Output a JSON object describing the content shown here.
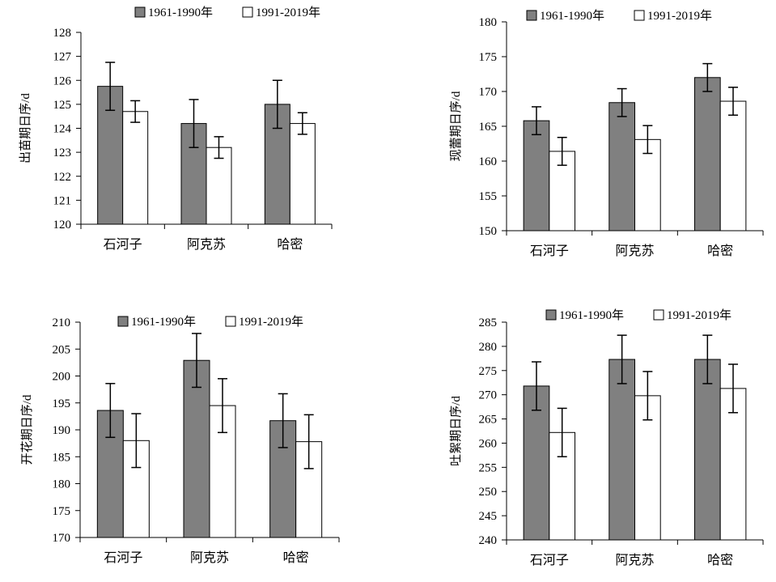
{
  "colors": {
    "series_1": "#808080",
    "series_2": "#ffffff",
    "stroke": "#000000"
  },
  "chart_data": [
    {
      "type": "bar",
      "categories": [
        "石河子",
        "阿克苏",
        "哈密"
      ],
      "ylabel": "出苗期日序/d",
      "ylim": [
        120,
        128
      ],
      "yticks": [
        120,
        121,
        122,
        123,
        124,
        125,
        126,
        127,
        128
      ],
      "legend_position": "top",
      "series": [
        {
          "name": "1961-1990年",
          "values": [
            125.75,
            124.2,
            125.0
          ],
          "errors": [
            1.0,
            1.0,
            1.0
          ]
        },
        {
          "name": "1991-2019年",
          "values": [
            124.7,
            123.2,
            124.2
          ],
          "errors": [
            0.45,
            0.45,
            0.45
          ]
        }
      ]
    },
    {
      "type": "bar",
      "categories": [
        "石河子",
        "阿克苏",
        "哈密"
      ],
      "ylabel": "现蕾期日序/d",
      "ylim": [
        150,
        180
      ],
      "yticks": [
        150,
        155,
        160,
        165,
        170,
        175,
        180
      ],
      "legend_position": "top",
      "series": [
        {
          "name": "1961-1990年",
          "values": [
            165.8,
            168.4,
            172.0
          ],
          "errors": [
            2.0,
            2.0,
            2.0
          ]
        },
        {
          "name": "1991-2019年",
          "values": [
            161.4,
            163.1,
            168.6
          ],
          "errors": [
            2.0,
            2.0,
            2.0
          ]
        }
      ]
    },
    {
      "type": "bar",
      "categories": [
        "石河子",
        "阿克苏",
        "哈密"
      ],
      "ylabel": "开花期日序/d",
      "ylim": [
        170,
        210
      ],
      "yticks": [
        170,
        175,
        180,
        185,
        190,
        195,
        200,
        205,
        210
      ],
      "legend_position": "top",
      "series": [
        {
          "name": "1961-1990年",
          "values": [
            193.6,
            202.9,
            191.7
          ],
          "errors": [
            5.0,
            5.0,
            5.0
          ]
        },
        {
          "name": "1991-2019年",
          "values": [
            188.0,
            194.5,
            187.8
          ],
          "errors": [
            5.0,
            5.0,
            5.0
          ]
        }
      ]
    },
    {
      "type": "bar",
      "categories": [
        "石河子",
        "阿克苏",
        "哈密"
      ],
      "ylabel": "吐絮期日序/d",
      "ylim": [
        240,
        285
      ],
      "yticks": [
        240,
        245,
        250,
        255,
        260,
        265,
        270,
        275,
        280,
        285
      ],
      "legend_position": "top",
      "series": [
        {
          "name": "1961-1990年",
          "values": [
            271.8,
            277.3,
            277.3
          ],
          "errors": [
            5.0,
            5.0,
            5.0
          ]
        },
        {
          "name": "1991-2019年",
          "values": [
            262.2,
            269.8,
            271.3
          ],
          "errors": [
            5.0,
            5.0,
            5.0
          ]
        }
      ]
    }
  ]
}
